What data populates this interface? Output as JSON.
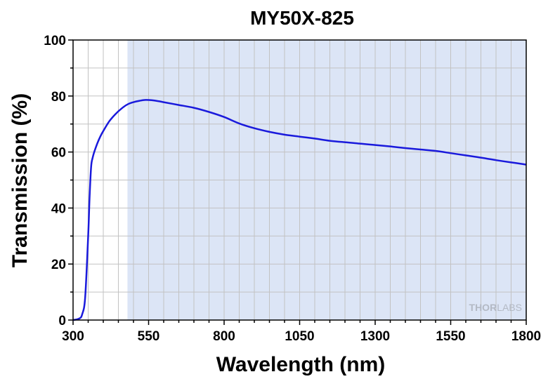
{
  "chart_data": {
    "type": "line",
    "title": "MY50X-825",
    "xlabel": "Wavelength (nm)",
    "ylabel": "Transmission (%)",
    "xlim": [
      300,
      1800
    ],
    "ylim": [
      0,
      100
    ],
    "x_ticks": [
      300,
      550,
      800,
      1050,
      1300,
      1550,
      1800
    ],
    "y_ticks": [
      0,
      20,
      40,
      60,
      80,
      100
    ],
    "grid": true,
    "shaded_region": [
      480,
      1800
    ],
    "watermark": {
      "part1": "THOR",
      "part2": "LABS"
    },
    "colors": {
      "line": "#1a1adc",
      "shade": "#dce5f6",
      "grid": "#c2c2c2"
    },
    "series": [
      {
        "x": [
          300,
          320,
          330,
          340,
          350,
          355,
          360,
          365,
          370,
          380,
          390,
          400,
          420,
          440,
          460,
          480,
          500,
          520,
          540,
          560,
          580,
          600,
          650,
          700,
          750,
          800,
          850,
          900,
          950,
          1000,
          1050,
          1100,
          1150,
          1200,
          1250,
          1300,
          1350,
          1400,
          1450,
          1500,
          1550,
          1600,
          1650,
          1700,
          1750,
          1800
        ],
        "y": [
          0,
          0.5,
          2,
          8,
          30,
          45,
          55,
          58,
          60,
          63,
          65.5,
          67.5,
          71,
          73.5,
          75.5,
          77,
          77.8,
          78.3,
          78.6,
          78.5,
          78.2,
          77.8,
          76.8,
          75.8,
          74.3,
          72.5,
          70.2,
          68.5,
          67.2,
          66.2,
          65.5,
          64.8,
          64,
          63.5,
          63,
          62.5,
          62,
          61.4,
          60.9,
          60.4,
          59.6,
          58.8,
          58,
          57.1,
          56.3,
          55.5
        ]
      }
    ]
  }
}
